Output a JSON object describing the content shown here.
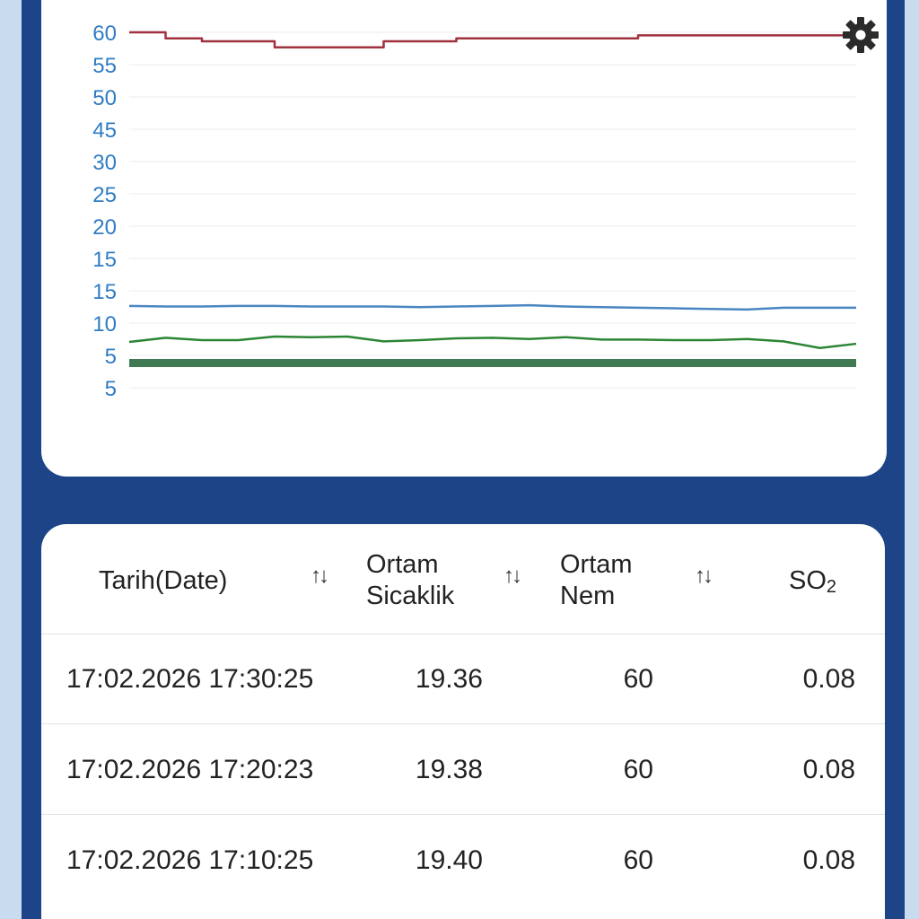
{
  "colors": {
    "page_bg": "#c9dcef",
    "panel_bg": "#1d4487",
    "axis_label": "#2f7dc4",
    "series_red": "#a0313e",
    "series_blue": "#4b86c2",
    "series_green": "#2c8535",
    "series_darkgreen": "#3f7a52"
  },
  "chart": {
    "settings_icon": "gear-icon"
  },
  "chart_data": {
    "type": "line",
    "ytick_labels": [
      "60",
      "55",
      "50",
      "45",
      "30",
      "25",
      "20",
      "15",
      "15",
      "10",
      "5",
      "5"
    ],
    "ylim": [
      0,
      60
    ],
    "grid": true,
    "x": [
      0,
      5,
      10,
      15,
      20,
      25,
      30,
      35,
      40,
      45,
      50,
      55,
      60,
      65,
      70,
      75,
      80,
      85,
      90,
      95,
      100
    ],
    "series": [
      {
        "values": [
          60,
          59,
          58.5,
          58.5,
          57.5,
          57.5,
          57.5,
          58.5,
          58.5,
          59,
          59,
          59,
          59,
          59,
          59.5,
          59.5,
          59.5,
          59.5,
          59.5,
          59.5,
          59
        ]
      },
      {
        "values": [
          14.5,
          14.4,
          14.4,
          14.5,
          14.5,
          14.4,
          14.4,
          14.4,
          14.3,
          14.4,
          14.5,
          14.6,
          14.4,
          14.3,
          14.2,
          14.1,
          14.0,
          13.9,
          14.2,
          14.2,
          14.2
        ]
      },
      {
        "values": [
          8.5,
          9.2,
          8.8,
          8.8,
          9.4,
          9.3,
          9.4,
          8.6,
          8.8,
          9.1,
          9.2,
          9.0,
          9.3,
          8.9,
          8.9,
          8.8,
          8.8,
          9.0,
          8.6,
          7.5,
          8.2
        ]
      },
      {
        "values": [
          5,
          5,
          5,
          5,
          5,
          5,
          5,
          5,
          5,
          5,
          5,
          5,
          5,
          5,
          5,
          5,
          5,
          5,
          5,
          5,
          5
        ]
      }
    ]
  },
  "table": {
    "headers": {
      "date": "Tarih(Date)",
      "temp_line1": "Ortam",
      "temp_line2": "Sicaklik",
      "hum_line1": "Ortam",
      "hum_line2": "Nem",
      "so2": "SO",
      "so2_sub": "2",
      "sort_glyph": "↑↓"
    },
    "rows": [
      {
        "date": "17:02.2026 17:30:25",
        "temp": "19.36",
        "hum": "60",
        "so2": "0.08"
      },
      {
        "date": "17:02.2026 17:20:23",
        "temp": "19.38",
        "hum": "60",
        "so2": "0.08"
      },
      {
        "date": "17:02.2026 17:10:25",
        "temp": "19.40",
        "hum": "60",
        "so2": "0.08"
      }
    ]
  }
}
